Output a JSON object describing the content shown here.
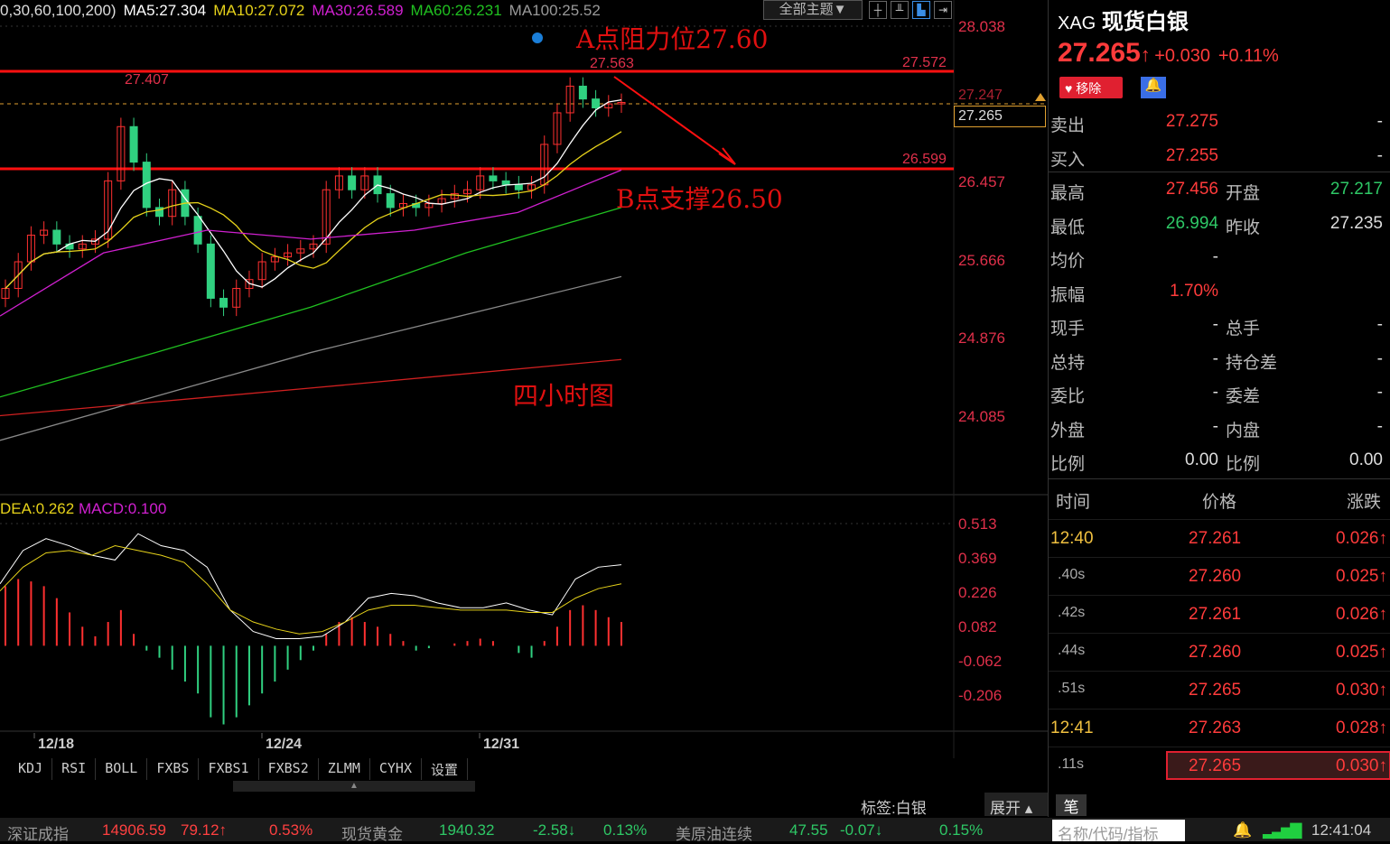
{
  "legend": {
    "prefix": "0,30,60,100,200)",
    "ma5": "MA5:27.304",
    "ma10": "MA10:27.072",
    "ma30": "MA30:26.589",
    "ma60": "MA60:26.231",
    "ma100": "MA100:25.52"
  },
  "toolbar": {
    "theme": "全部主题▼",
    "icons": [
      "crosshair-icon",
      "bar-chart-icon",
      "candle-icon",
      "exit-icon"
    ]
  },
  "annotations": {
    "resistance": "A点阻力位27.60",
    "support": "B点支撑26.50",
    "period": "四小时图",
    "high_label": "27.407",
    "peak_label": "27.563",
    "resistance_value": "27.572",
    "support_value": "26.599",
    "current_hidden": "27.247",
    "current": "27.265"
  },
  "colors": {
    "ma5": "#ffffff",
    "ma10": "#e6d21a",
    "ma30": "#d020d0",
    "ma60": "#20c020",
    "ma100": "#888888",
    "ma200": "#d02020",
    "up": "#ff3030",
    "down": "#30d080"
  },
  "chart_data": {
    "type": "candlestick",
    "price_axis_ticks": [
      "28.038",
      "26.457",
      "25.666",
      "24.876",
      "24.085"
    ],
    "ylim": [
      24.085,
      28.038
    ],
    "x_ticks": [
      "12/18",
      "12/24",
      "12/31"
    ],
    "closes": [
      25.38,
      25.65,
      25.92,
      25.97,
      25.83,
      25.78,
      25.83,
      25.88,
      26.47,
      27.02,
      26.66,
      26.2,
      26.11,
      26.38,
      26.11,
      25.83,
      25.28,
      25.19,
      25.38,
      25.47,
      25.65,
      25.7,
      25.74,
      25.78,
      25.83,
      26.38,
      26.52,
      26.38,
      26.52,
      26.34,
      26.2,
      26.24,
      26.2,
      26.24,
      26.29,
      26.34,
      26.38,
      26.52,
      26.47,
      26.43,
      26.38,
      26.43,
      26.84,
      27.16,
      27.43,
      27.3,
      27.21,
      27.25,
      27.265
    ],
    "ma30": [
      25.1,
      25.74,
      25.97,
      25.88,
      25.97,
      26.15,
      26.58
    ],
    "ma60": [
      24.28,
      24.73,
      25.19,
      25.74,
      26.2
    ],
    "ma100": [
      23.84,
      24.73,
      25.5
    ],
    "ma200": [
      24.09,
      24.37,
      24.66
    ],
    "macd": {
      "legend_dea": "DEA:0.262",
      "legend_macd": "MACD:0.100",
      "ticks": [
        "0.513",
        "0.369",
        "0.226",
        "0.082",
        "-0.062",
        "-0.206"
      ],
      "ylim": [
        -0.206,
        0.513
      ],
      "hist": [
        0.25,
        0.28,
        0.27,
        0.25,
        0.2,
        0.14,
        0.08,
        0.04,
        0.1,
        0.15,
        0.05,
        -0.02,
        -0.05,
        -0.1,
        -0.15,
        -0.2,
        -0.3,
        -0.33,
        -0.3,
        -0.25,
        -0.2,
        -0.15,
        -0.1,
        -0.06,
        -0.02,
        0.05,
        0.1,
        0.12,
        0.1,
        0.08,
        0.05,
        0.02,
        -0.02,
        -0.01,
        0.0,
        0.01,
        0.02,
        0.03,
        0.02,
        0.0,
        -0.03,
        -0.05,
        0.02,
        0.08,
        0.15,
        0.17,
        0.15,
        0.12,
        0.1
      ],
      "dif": [
        0.26,
        0.4,
        0.45,
        0.42,
        0.38,
        0.36,
        0.47,
        0.42,
        0.4,
        0.33,
        0.15,
        0.06,
        0.03,
        0.03,
        0.04,
        0.1,
        0.2,
        0.22,
        0.21,
        0.18,
        0.16,
        0.16,
        0.18,
        0.15,
        0.13,
        0.28,
        0.33,
        0.34
      ],
      "dea": [
        0.23,
        0.33,
        0.39,
        0.4,
        0.38,
        0.42,
        0.4,
        0.38,
        0.35,
        0.26,
        0.15,
        0.1,
        0.07,
        0.05,
        0.06,
        0.1,
        0.15,
        0.17,
        0.17,
        0.16,
        0.15,
        0.15,
        0.15,
        0.14,
        0.14,
        0.2,
        0.24,
        0.26
      ]
    }
  },
  "quote": {
    "symbol": "XAG",
    "name": "现货白银",
    "price": "27.265",
    "arrow": "↑",
    "change": "+0.030",
    "pct": "+0.11%",
    "remove_btn": "♥ 移除",
    "rows": [
      {
        "l1": "卖出",
        "v1": "27.275",
        "l2": "",
        "v2": "-"
      },
      {
        "l1": "买入",
        "v1": "27.255",
        "l2": "",
        "v2": "-"
      },
      {
        "l1": "最高",
        "v1": "27.456",
        "l2": "开盘",
        "v2": "27.217"
      },
      {
        "l1": "最低",
        "v1": "26.994",
        "l2": "昨收",
        "v2": "27.235"
      },
      {
        "l1": "均价",
        "v1": "-",
        "l2": "",
        "v2": ""
      },
      {
        "l1": "振幅",
        "v1": "1.70%",
        "l2": "",
        "v2": ""
      },
      {
        "l1": "现手",
        "v1": "-",
        "l2": "总手",
        "v2": "-"
      },
      {
        "l1": "总持",
        "v1": "-",
        "l2": "持仓差",
        "v2": "-"
      },
      {
        "l1": "委比",
        "v1": "-",
        "l2": "委差",
        "v2": "-"
      },
      {
        "l1": "外盘",
        "v1": "-",
        "l2": "内盘",
        "v2": "-"
      },
      {
        "l1": "比例",
        "v1": "0.00",
        "l2": "比例",
        "v2": "0.00"
      }
    ],
    "tick_headers": [
      "时间",
      "价格",
      "涨跌"
    ],
    "ticks": [
      {
        "t": "12:40",
        "p": "27.261",
        "c": "0.026↑"
      },
      {
        "t": ".40s",
        "p": "27.260",
        "c": "0.025↑"
      },
      {
        "t": ".42s",
        "p": "27.261",
        "c": "0.026↑"
      },
      {
        "t": ".44s",
        "p": "27.260",
        "c": "0.025↑"
      },
      {
        "t": ".51s",
        "p": "27.265",
        "c": "0.030↑"
      },
      {
        "t": "12:41",
        "p": "27.263",
        "c": "0.028↑"
      },
      {
        "t": ".11s",
        "p": "27.265",
        "c": "0.030↑"
      }
    ],
    "tab_bi": "笔"
  },
  "indicator_tabs": [
    "KDJ",
    "RSI",
    "BOLL",
    "FXBS",
    "FXBS1",
    "FXBS2",
    "ZLMM",
    "CYHX",
    "设置"
  ],
  "tag_label": "标签:白银",
  "expand": "展开 ▴",
  "ticker": [
    {
      "name": "深证成指",
      "val": "14906.59",
      "chg": "79.12↑",
      "pct": "0.53%"
    },
    {
      "name": "现货黄金",
      "val": "1940.32",
      "chg": "-2.58↓",
      "pct": "0.13%"
    },
    {
      "name": "美原油连续",
      "val": "47.55",
      "chg": "-0.07↓",
      "pct": "0.15%"
    }
  ],
  "search_placeholder": "名称/代码/指标",
  "clock": "12:41:04"
}
